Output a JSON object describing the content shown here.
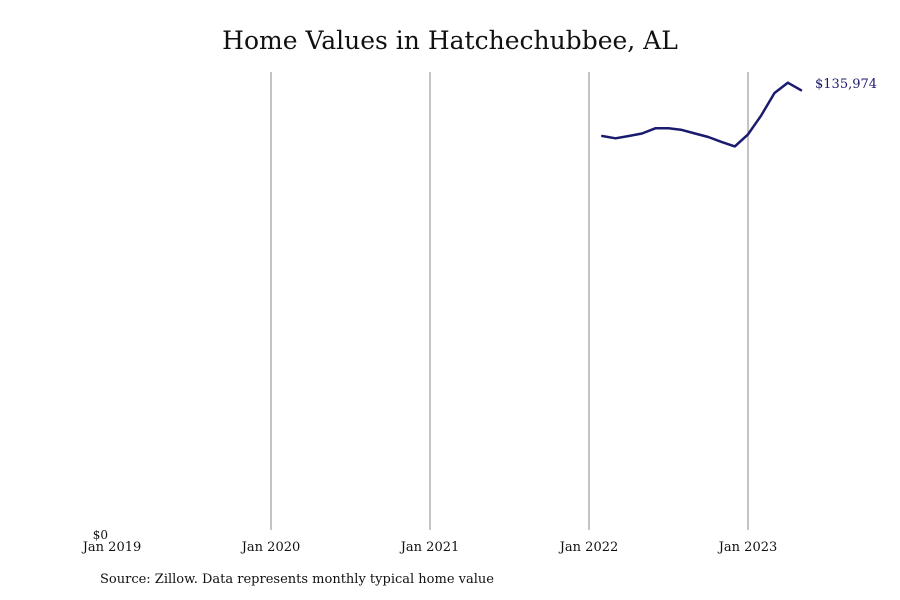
{
  "chart_data": {
    "type": "line",
    "title": "Home Values in Hatchechubbee, AL",
    "source": "Source: Zillow. Data represents monthly typical home value",
    "xlabel": "",
    "ylabel": "",
    "x_ticks": [
      "Jan 2019",
      "Jan 2020",
      "Jan 2021",
      "Jan 2022",
      "Jan 2023"
    ],
    "y_ticks": [
      "$0"
    ],
    "ylim": [
      0,
      145000
    ],
    "grid": "vertical",
    "legend": "none",
    "line_color": "#1a1a6e",
    "end_label": "$135,974",
    "series": [
      {
        "x": [
          "2022-02",
          "2022-03",
          "2022-04",
          "2022-05",
          "2022-06",
          "2022-07",
          "2022-08",
          "2022-09",
          "2022-10",
          "2022-11",
          "2022-12",
          "2023-01",
          "2023-02",
          "2023-03",
          "2023-04",
          "2023-05"
        ],
        "values": [
          121800,
          121100,
          121800,
          122600,
          124200,
          124200,
          123700,
          122600,
          121500,
          120000,
          118600,
          122300,
          128200,
          135100,
          138300,
          135974
        ]
      }
    ]
  }
}
